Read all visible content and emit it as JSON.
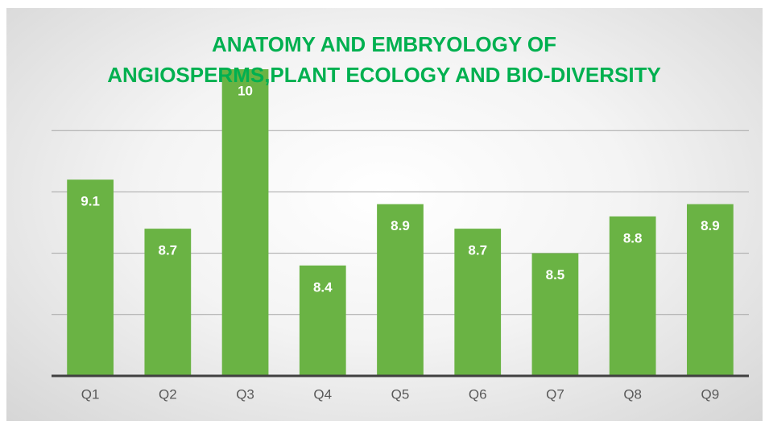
{
  "chart_data": {
    "type": "bar",
    "title": "ANATOMY  AND EMBRYOLOGY OF ANGIOSPERMS,PLANT ECOLOGY AND  BIO-DIVERSITY",
    "categories": [
      "Q1",
      "Q2",
      "Q3",
      "Q4",
      "Q5",
      "Q6",
      "Q7",
      "Q8",
      "Q9"
    ],
    "values": [
      9.1,
      8.7,
      10,
      8.4,
      8.9,
      8.7,
      8.5,
      8.8,
      8.9
    ],
    "color": "#6ab344",
    "ylim": [
      7.5,
      10
    ],
    "yticks": [
      8,
      8.5,
      9,
      9.5
    ],
    "grid": true
  }
}
